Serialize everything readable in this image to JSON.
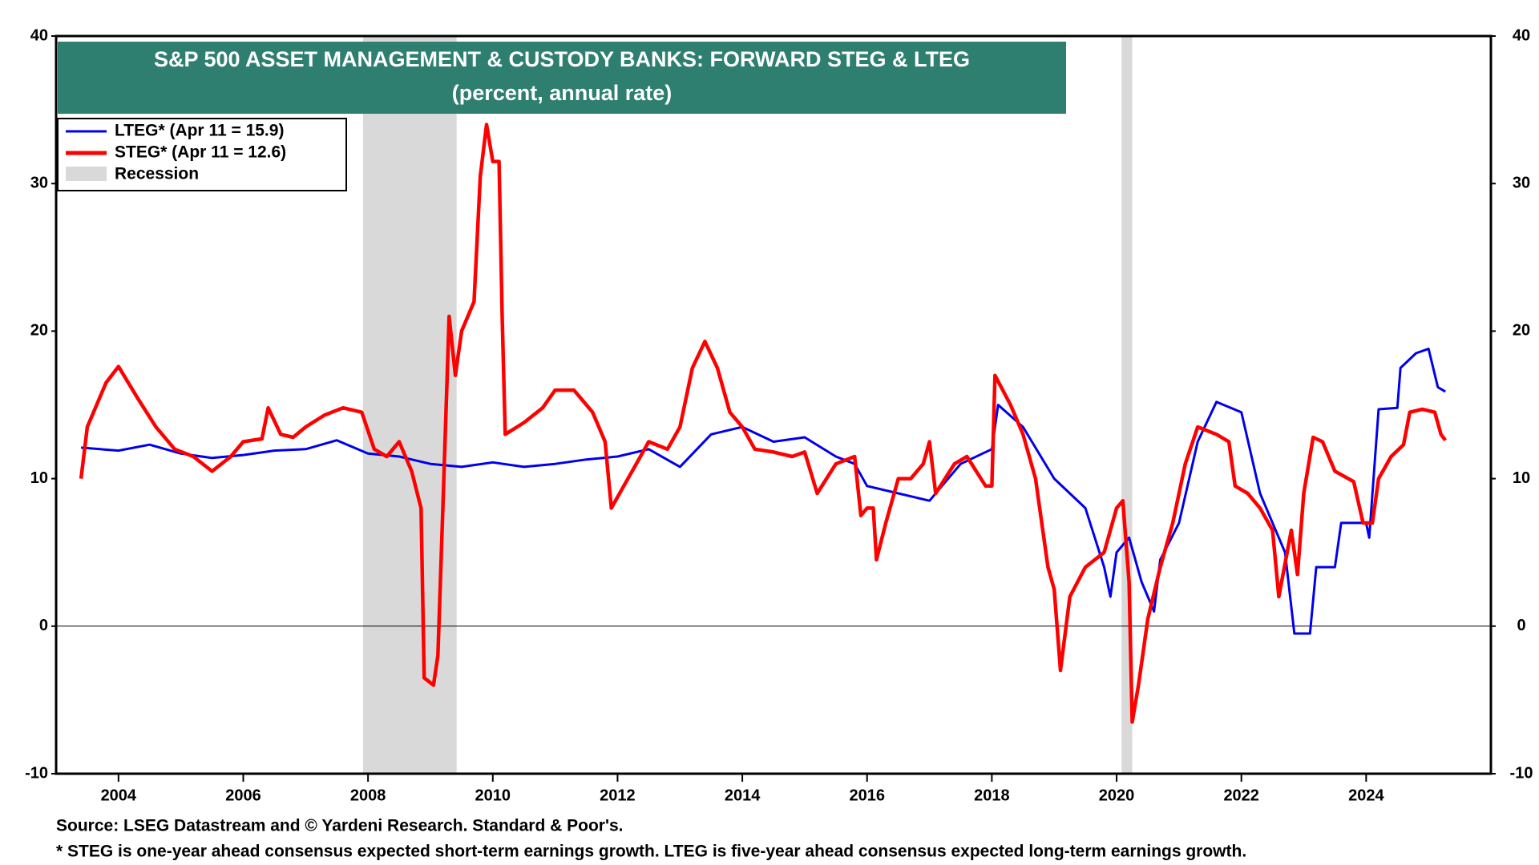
{
  "chart_data": {
    "type": "line",
    "title": "S&P 500 ASSET MANAGEMENT & CUSTODY BANKS: FORWARD STEG & LTEG",
    "subtitle": "(percent, annual rate)",
    "source": "Source: LSEG Datastream and © Yardeni Research. Standard & Poor's.",
    "note": "* STEG is one-year ahead consensus expected short-term earnings growth. LTEG is five-year ahead consensus expected long-term earnings growth.",
    "xlim": [
      2003.0,
      2026.0
    ],
    "xticks": [
      2004,
      2006,
      2008,
      2010,
      2012,
      2014,
      2016,
      2018,
      2020,
      2022,
      2024
    ],
    "ylim": [
      -10,
      40
    ],
    "yticks": [
      -10,
      0,
      10,
      20,
      30,
      40
    ],
    "y2lim": [
      -10,
      40
    ],
    "y2ticks": [
      -10,
      0,
      10,
      20,
      30,
      40
    ],
    "recession_label": "Recession",
    "recession_color": "#d9d9d9",
    "recessions": [
      [
        2007.92,
        2009.42
      ],
      [
        2020.08,
        2020.25
      ]
    ],
    "series": [
      {
        "name": "LTEG* (Apr 11 = 15.9)",
        "color": "#0000ee",
        "x": [
          2003.4,
          2004.0,
          2004.5,
          2005.0,
          2005.5,
          2006.0,
          2006.5,
          2007.0,
          2007.5,
          2008.0,
          2008.5,
          2009.0,
          2009.5,
          2010.0,
          2010.5,
          2011.0,
          2011.5,
          2012.0,
          2012.5,
          2013.0,
          2013.5,
          2014.0,
          2014.5,
          2015.0,
          2015.5,
          2015.8,
          2016.0,
          2016.5,
          2017.0,
          2017.5,
          2018.0,
          2018.1,
          2018.5,
          2019.0,
          2019.5,
          2019.8,
          2019.9,
          2020.0,
          2020.2,
          2020.4,
          2020.6,
          2020.7,
          2021.0,
          2021.3,
          2021.6,
          2022.0,
          2022.3,
          2022.5,
          2022.7,
          2022.85,
          2023.1,
          2023.2,
          2023.5,
          2023.6,
          2024.0,
          2024.05,
          2024.2,
          2024.5,
          2024.55,
          2024.8,
          2025.0,
          2025.15,
          2025.27
        ],
        "values": [
          12.1,
          11.9,
          12.3,
          11.7,
          11.4,
          11.6,
          11.9,
          12.0,
          12.6,
          11.7,
          11.5,
          11.0,
          10.8,
          11.1,
          10.8,
          11.0,
          11.3,
          11.5,
          12.0,
          10.8,
          13.0,
          13.5,
          12.5,
          12.8,
          11.5,
          11.0,
          9.5,
          9.0,
          8.5,
          11.0,
          12.0,
          15.0,
          13.5,
          10.0,
          8.0,
          4.0,
          2.0,
          5.0,
          6.0,
          3.0,
          1.0,
          4.5,
          7.0,
          12.5,
          15.2,
          14.5,
          9.0,
          7.0,
          5.0,
          -0.5,
          -0.5,
          4.0,
          4.0,
          7.0,
          7.0,
          6.0,
          14.7,
          14.8,
          17.5,
          18.5,
          18.8,
          16.2,
          15.9
        ]
      },
      {
        "name": "STEG* (Apr 11 = 12.6)",
        "color": "#ff0000",
        "x": [
          2003.4,
          2003.5,
          2003.8,
          2004.0,
          2004.3,
          2004.6,
          2004.9,
          2005.2,
          2005.5,
          2005.8,
          2006.0,
          2006.3,
          2006.4,
          2006.6,
          2006.8,
          2007.0,
          2007.3,
          2007.6,
          2007.9,
          2008.1,
          2008.3,
          2008.5,
          2008.7,
          2008.85,
          2008.9,
          2009.05,
          2009.12,
          2009.2,
          2009.3,
          2009.4,
          2009.5,
          2009.7,
          2009.8,
          2009.9,
          2010.0,
          2010.1,
          2010.15,
          2010.2,
          2010.5,
          2010.8,
          2011.0,
          2011.3,
          2011.6,
          2011.8,
          2011.9,
          2012.1,
          2012.3,
          2012.5,
          2012.8,
          2013.0,
          2013.2,
          2013.4,
          2013.6,
          2013.8,
          2014.0,
          2014.2,
          2014.5,
          2014.8,
          2015.0,
          2015.2,
          2015.5,
          2015.8,
          2015.9,
          2016.0,
          2016.1,
          2016.15,
          2016.3,
          2016.5,
          2016.7,
          2016.9,
          2017.0,
          2017.1,
          2017.4,
          2017.6,
          2017.9,
          2018.0,
          2018.05,
          2018.3,
          2018.5,
          2018.7,
          2018.9,
          2019.0,
          2019.1,
          2019.25,
          2019.5,
          2019.8,
          2020.0,
          2020.1,
          2020.2,
          2020.25,
          2020.35,
          2020.5,
          2020.7,
          2020.9,
          2021.1,
          2021.3,
          2021.6,
          2021.8,
          2021.9,
          2022.1,
          2022.3,
          2022.5,
          2022.6,
          2022.8,
          2022.9,
          2023.0,
          2023.15,
          2023.3,
          2023.5,
          2023.8,
          2023.95,
          2024.1,
          2024.2,
          2024.4,
          2024.6,
          2024.7,
          2024.9,
          2025.1,
          2025.2,
          2025.27
        ],
        "values": [
          10.0,
          13.5,
          16.5,
          17.6,
          15.5,
          13.5,
          12.0,
          11.5,
          10.5,
          11.5,
          12.5,
          12.7,
          14.8,
          13.0,
          12.8,
          13.5,
          14.3,
          14.8,
          14.5,
          12.0,
          11.5,
          12.5,
          10.5,
          8.0,
          -3.5,
          -4.0,
          -2.0,
          8.0,
          21.0,
          17.0,
          20.0,
          22.0,
          30.5,
          34.0,
          31.5,
          31.5,
          21.0,
          13.0,
          13.8,
          14.8,
          16.0,
          16.0,
          14.5,
          12.5,
          8.0,
          9.5,
          11.0,
          12.5,
          12.0,
          13.5,
          17.5,
          19.3,
          17.5,
          14.5,
          13.5,
          12.0,
          11.8,
          11.5,
          11.8,
          9.0,
          11.0,
          11.5,
          7.5,
          8.0,
          8.0,
          4.5,
          7.0,
          10.0,
          10.0,
          11.0,
          12.5,
          9.0,
          11.0,
          11.5,
          9.5,
          9.5,
          17.0,
          15.0,
          13.0,
          10.0,
          4.0,
          2.5,
          -3.0,
          2.0,
          4.0,
          5.0,
          8.0,
          8.5,
          3.0,
          -6.5,
          -4.0,
          0.5,
          4.0,
          7.0,
          11.0,
          13.5,
          13.0,
          12.5,
          9.5,
          9.0,
          8.0,
          6.5,
          2.0,
          6.5,
          3.5,
          9.0,
          12.8,
          12.5,
          10.5,
          9.8,
          7.0,
          7.0,
          10.0,
          11.5,
          12.3,
          14.5,
          14.7,
          14.5,
          13.0,
          12.6
        ]
      }
    ]
  }
}
